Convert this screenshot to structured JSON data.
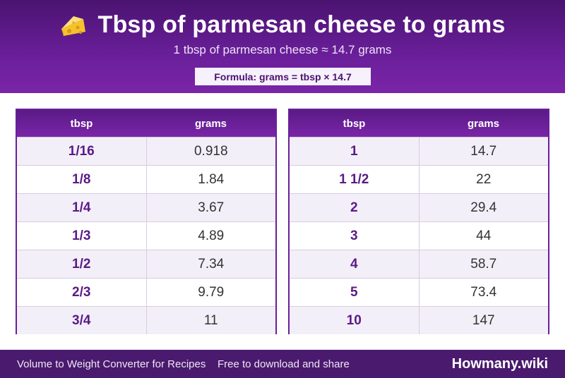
{
  "header": {
    "title": "Tbsp of parmesan cheese to grams",
    "subtitle": "1 tbsp of parmesan cheese ≈ 14.7 grams",
    "formula": "Formula: grams = tbsp × 14.7",
    "icon": "cheese-icon"
  },
  "tables": [
    {
      "headers": [
        "tbsp",
        "grams"
      ],
      "rows": [
        [
          "1/16",
          "0.918"
        ],
        [
          "1/8",
          "1.84"
        ],
        [
          "1/4",
          "3.67"
        ],
        [
          "1/3",
          "4.89"
        ],
        [
          "1/2",
          "7.34"
        ],
        [
          "2/3",
          "9.79"
        ],
        [
          "3/4",
          "11"
        ]
      ]
    },
    {
      "headers": [
        "tbsp",
        "grams"
      ],
      "rows": [
        [
          "1",
          "14.7"
        ],
        [
          "1 1/2",
          "22"
        ],
        [
          "2",
          "29.4"
        ],
        [
          "3",
          "44"
        ],
        [
          "4",
          "58.7"
        ],
        [
          "5",
          "73.4"
        ],
        [
          "10",
          "147"
        ]
      ]
    }
  ],
  "footer": {
    "left": "Volume to Weight Converter for Recipes",
    "middle": "Free to download and share",
    "brand": "Howmany.wiki"
  },
  "colors": {
    "brand_purple": "#6a1f9a",
    "dark_purple": "#4a1370",
    "row_alt": "#f3eff9"
  }
}
